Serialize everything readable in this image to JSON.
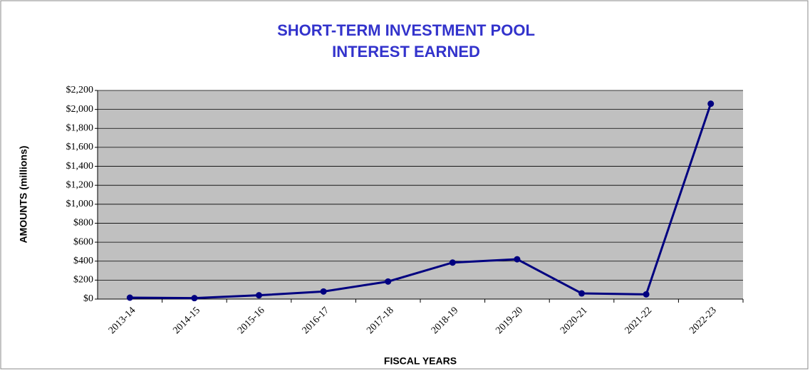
{
  "chart_data": {
    "type": "line",
    "title": [
      "SHORT-TERM INVESTMENT POOL",
      "INTEREST EARNED"
    ],
    "x_label": "FISCAL YEARS",
    "y_label": "AMOUNTS (millions)",
    "categories": [
      "2013-14",
      "2014-15",
      "2015-16",
      "2016-17",
      "2017-18",
      "2018-19",
      "2019-20",
      "2020-21",
      "2021-22",
      "2022-23"
    ],
    "series": [
      {
        "color": "#000080",
        "values": [
          15,
          10,
          40,
          80,
          185,
          385,
          420,
          60,
          50,
          2060
        ]
      }
    ],
    "ylim": [
      0,
      2200
    ],
    "yticks": [
      {
        "value": 0,
        "label": "$0"
      },
      {
        "value": 200,
        "label": "$200"
      },
      {
        "value": 400,
        "label": "$400"
      },
      {
        "value": 600,
        "label": "$600"
      },
      {
        "value": 800,
        "label": "$800"
      },
      {
        "value": 1000,
        "label": "$1,000"
      },
      {
        "value": 1200,
        "label": "$1,200"
      },
      {
        "value": 1400,
        "label": "$1,400"
      },
      {
        "value": 1600,
        "label": "$1,600"
      },
      {
        "value": 1800,
        "label": "$1,800"
      },
      {
        "value": 2000,
        "label": "$2,000"
      },
      {
        "value": 2200,
        "label": "$2,200"
      }
    ],
    "grid": true
  }
}
